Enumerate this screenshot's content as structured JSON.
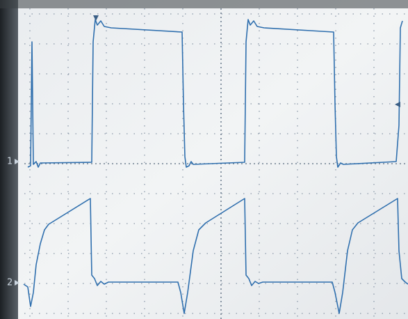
{
  "markers": {
    "channel_1": "1",
    "channel_2": "2"
  }
}
